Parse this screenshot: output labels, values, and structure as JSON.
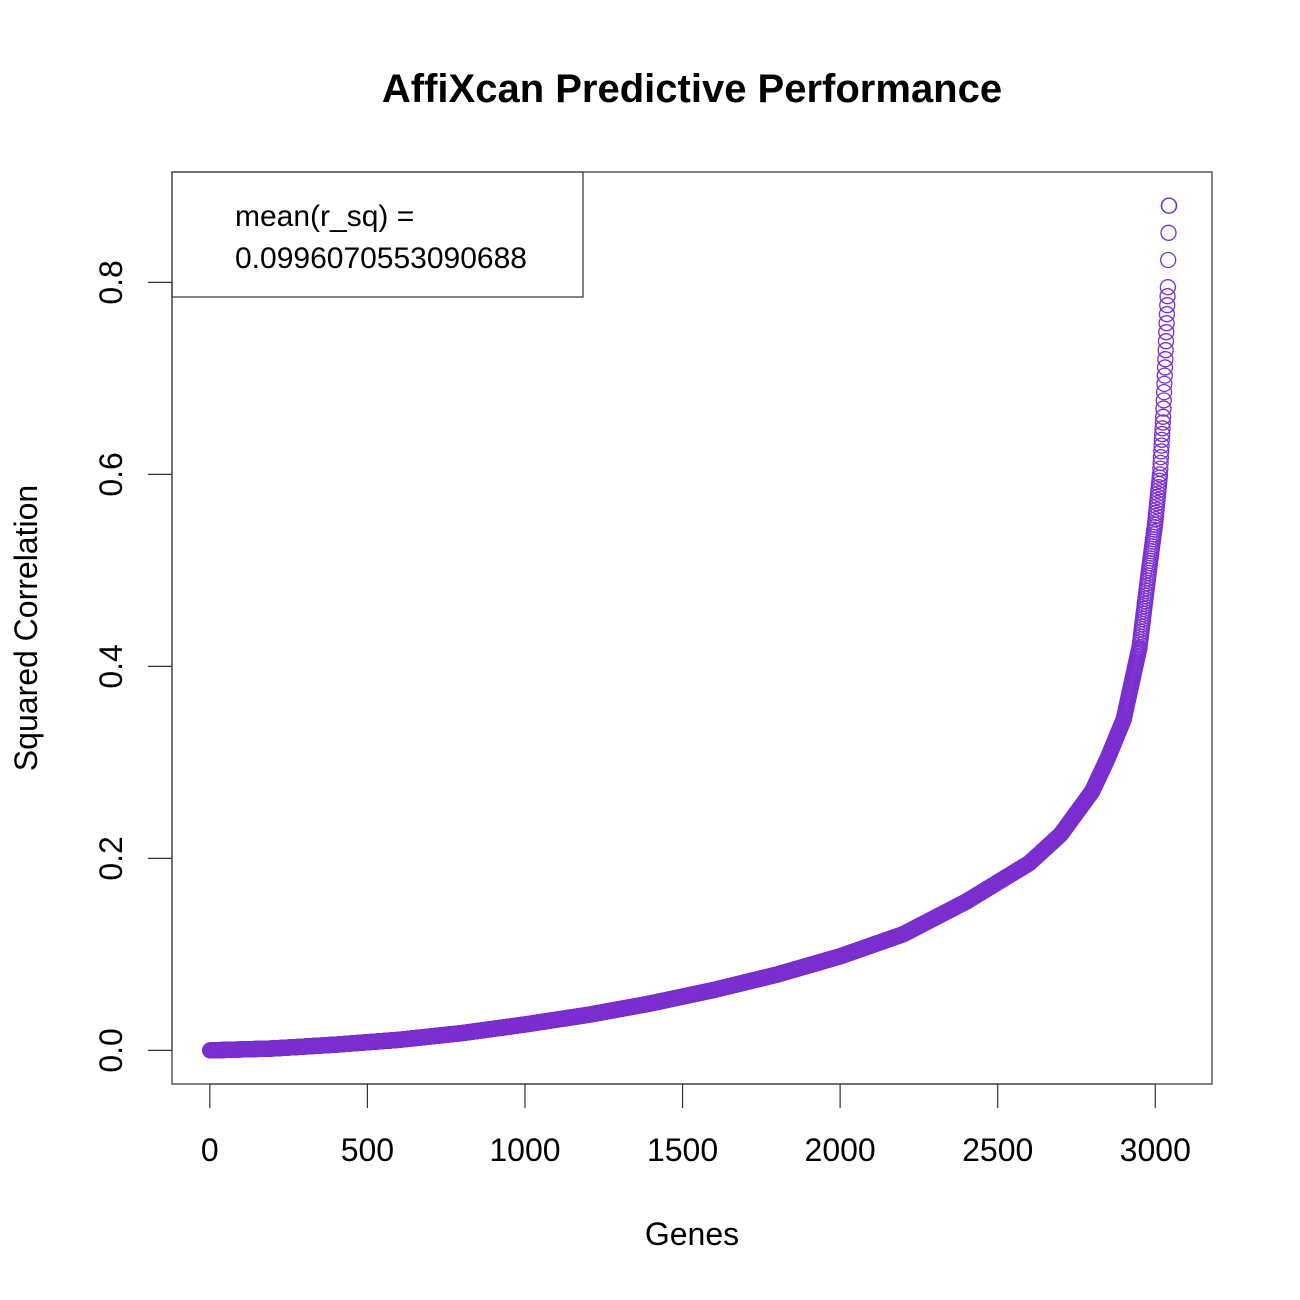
{
  "chart_data": {
    "type": "scatter",
    "title": "AffiXcan Predictive Performance",
    "xlabel": "Genes",
    "ylabel": "Squared Correlation",
    "xlim": [
      -120,
      3180
    ],
    "ylim": [
      -0.035,
      0.915
    ],
    "x_ticks": [
      0,
      500,
      1000,
      1500,
      2000,
      2500,
      3000
    ],
    "x_tick_labels": [
      "0",
      "500",
      "1000",
      "1500",
      "2000",
      "2500",
      "3000"
    ],
    "y_ticks": [
      0.0,
      0.2,
      0.4,
      0.6,
      0.8
    ],
    "y_tick_labels": [
      "0.0",
      "0.2",
      "0.4",
      "0.6",
      "0.8"
    ],
    "n_points": 3044,
    "point_color": "#7B2FCF",
    "marker": "open-circle",
    "grid": false,
    "legend": {
      "position": "top-left",
      "line1": "mean(r_sq) =",
      "line2": "0.0996070553090688"
    },
    "curve": [
      [
        0,
        0.0
      ],
      [
        200,
        0.002
      ],
      [
        400,
        0.006
      ],
      [
        600,
        0.011
      ],
      [
        800,
        0.018
      ],
      [
        1000,
        0.027
      ],
      [
        1200,
        0.037
      ],
      [
        1400,
        0.049
      ],
      [
        1600,
        0.063
      ],
      [
        1800,
        0.079
      ],
      [
        2000,
        0.098
      ],
      [
        2200,
        0.121
      ],
      [
        2400,
        0.155
      ],
      [
        2500,
        0.175
      ],
      [
        2600,
        0.195
      ],
      [
        2700,
        0.225
      ],
      [
        2800,
        0.27
      ],
      [
        2850,
        0.305
      ],
      [
        2900,
        0.345
      ],
      [
        2950,
        0.42
      ],
      [
        2980,
        0.5
      ],
      [
        3000,
        0.55
      ],
      [
        3015,
        0.6
      ],
      [
        3025,
        0.66
      ],
      [
        3032,
        0.72
      ],
      [
        3040,
        0.795
      ],
      [
        3043,
        0.88
      ]
    ]
  }
}
